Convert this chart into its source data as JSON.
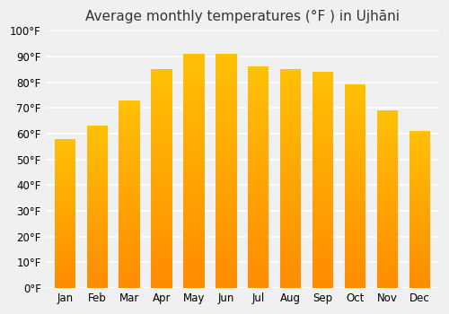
{
  "title": "Average monthly temperatures (°F ) in Ujhāni",
  "months": [
    "Jan",
    "Feb",
    "Mar",
    "Apr",
    "May",
    "Jun",
    "Jul",
    "Aug",
    "Sep",
    "Oct",
    "Nov",
    "Dec"
  ],
  "values": [
    58,
    63,
    73,
    85,
    91,
    91,
    86,
    85,
    84,
    79,
    69,
    61
  ],
  "ylim": [
    0,
    100
  ],
  "yticks": [
    0,
    10,
    20,
    30,
    40,
    50,
    60,
    70,
    80,
    90,
    100
  ],
  "ytick_labels": [
    "0°F",
    "10°F",
    "20°F",
    "30°F",
    "40°F",
    "50°F",
    "60°F",
    "70°F",
    "80°F",
    "90°F",
    "100°F"
  ],
  "bar_color_top": "#FFC107",
  "bar_color_bottom": "#FF8C00",
  "background_color": "#f0f0f0",
  "grid_color": "#ffffff",
  "title_fontsize": 11,
  "tick_fontsize": 8.5
}
